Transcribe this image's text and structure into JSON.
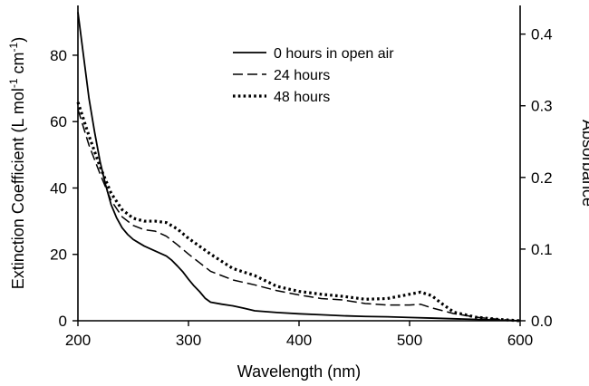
{
  "chart_data": {
    "type": "line",
    "title": "",
    "xlabel": "Wavelength (nm)",
    "ylabel": {
      "prefix": "Extinction Coefficient (L mol",
      "sup1": "-1",
      "middle": " cm",
      "sup2": "-1",
      "suffix": ")"
    },
    "y2label": "Absorbance",
    "xlim": [
      200,
      600
    ],
    "ylim": [
      0,
      95
    ],
    "y2lim": [
      0,
      0.44
    ],
    "xticks": [
      200,
      300,
      400,
      500,
      600
    ],
    "yticks": [
      0,
      20,
      40,
      60,
      80
    ],
    "y2ticks": [
      0.0,
      0.1,
      0.2,
      0.3,
      0.4
    ],
    "xtick_labels": [
      "200",
      "300",
      "400",
      "500",
      "600"
    ],
    "ytick_labels": [
      "0",
      "20",
      "40",
      "60",
      "80"
    ],
    "y2tick_labels": [
      "0.0",
      "0.1",
      "0.2",
      "0.3",
      "0.4"
    ],
    "legend_position": "top-center",
    "grid": false,
    "series": [
      {
        "name": "0 hours in open air",
        "axis": "left",
        "style": "solid",
        "x": [
          200,
          205,
          210,
          215,
          220,
          225,
          230,
          235,
          240,
          245,
          250,
          255,
          260,
          270,
          280,
          285,
          290,
          295,
          300,
          305,
          310,
          315,
          320,
          330,
          340,
          350,
          360,
          380,
          400,
          420,
          440,
          460,
          480,
          500,
          520,
          540,
          560,
          580,
          600
        ],
        "values": [
          93,
          80,
          67,
          57,
          48,
          41,
          35,
          31,
          28,
          26,
          24.5,
          23.5,
          22.5,
          21,
          19.5,
          18.2,
          16.5,
          14.7,
          12.5,
          10.5,
          8.8,
          6.8,
          5.6,
          5.0,
          4.5,
          3.8,
          3.0,
          2.5,
          2.1,
          1.8,
          1.5,
          1.3,
          1.2,
          1.0,
          0.8,
          0.6,
          0.4,
          0.2,
          0.0
        ]
      },
      {
        "name": "24 hours",
        "axis": "right",
        "style": "dashed",
        "x": [
          200,
          210,
          220,
          230,
          240,
          250,
          260,
          270,
          280,
          290,
          300,
          310,
          320,
          340,
          360,
          380,
          400,
          420,
          440,
          460,
          480,
          500,
          510,
          520,
          540,
          560,
          580,
          600
        ],
        "values": [
          0.295,
          0.245,
          0.205,
          0.168,
          0.145,
          0.133,
          0.127,
          0.125,
          0.118,
          0.106,
          0.093,
          0.081,
          0.069,
          0.057,
          0.05,
          0.042,
          0.036,
          0.031,
          0.029,
          0.024,
          0.022,
          0.022,
          0.023,
          0.018,
          0.01,
          0.005,
          0.002,
          0.0
        ]
      },
      {
        "name": "48 hours",
        "axis": "right",
        "style": "dotted",
        "x": [
          200,
          210,
          220,
          230,
          240,
          250,
          260,
          270,
          280,
          290,
          300,
          310,
          320,
          330,
          340,
          360,
          380,
          400,
          420,
          440,
          460,
          480,
          500,
          510,
          520,
          530,
          540,
          560,
          580,
          600
        ],
        "values": [
          0.305,
          0.258,
          0.215,
          0.178,
          0.155,
          0.143,
          0.139,
          0.139,
          0.137,
          0.128,
          0.115,
          0.104,
          0.093,
          0.083,
          0.073,
          0.063,
          0.048,
          0.041,
          0.037,
          0.034,
          0.03,
          0.031,
          0.037,
          0.04,
          0.035,
          0.023,
          0.012,
          0.005,
          0.002,
          0.0
        ]
      }
    ]
  }
}
